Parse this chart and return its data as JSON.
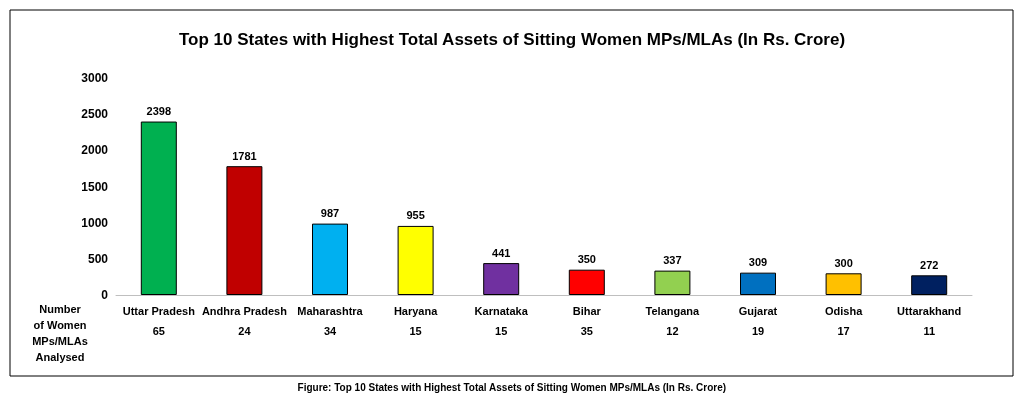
{
  "chart_data": {
    "type": "bar",
    "title": "Top 10 States with Highest Total Assets of Sitting Women MPs/MLAs (In Rs. Crore)",
    "categories": [
      "Uttar Pradesh",
      "Andhra Pradesh",
      "Maharashtra",
      "Haryana",
      "Karnataka",
      "Bihar",
      "Telangana",
      "Gujarat",
      "Odisha",
      "Uttarakhand"
    ],
    "values": [
      2398,
      1781,
      987,
      955,
      441,
      350,
      337,
      309,
      300,
      272
    ],
    "colors": [
      "#00b050",
      "#c00000",
      "#00b0f0",
      "#ffff00",
      "#7030a0",
      "#ff0000",
      "#92d050",
      "#0070c0",
      "#ffc000",
      "#002060"
    ],
    "ylim": [
      0,
      3000
    ],
    "yticks": [
      0,
      500,
      1000,
      1500,
      2000,
      2500,
      3000
    ],
    "grid": false,
    "data_labels": true,
    "annotations": [
      "Number of Women MPs/MLAs Analysed",
      "65",
      "24",
      "34",
      "15",
      "15",
      "35",
      "12",
      "19",
      "17",
      "11",
      "Figure: Top 10 States with Highest Total Assets of Sitting Women MPs/MLAs (In Rs. Crore)"
    ]
  }
}
